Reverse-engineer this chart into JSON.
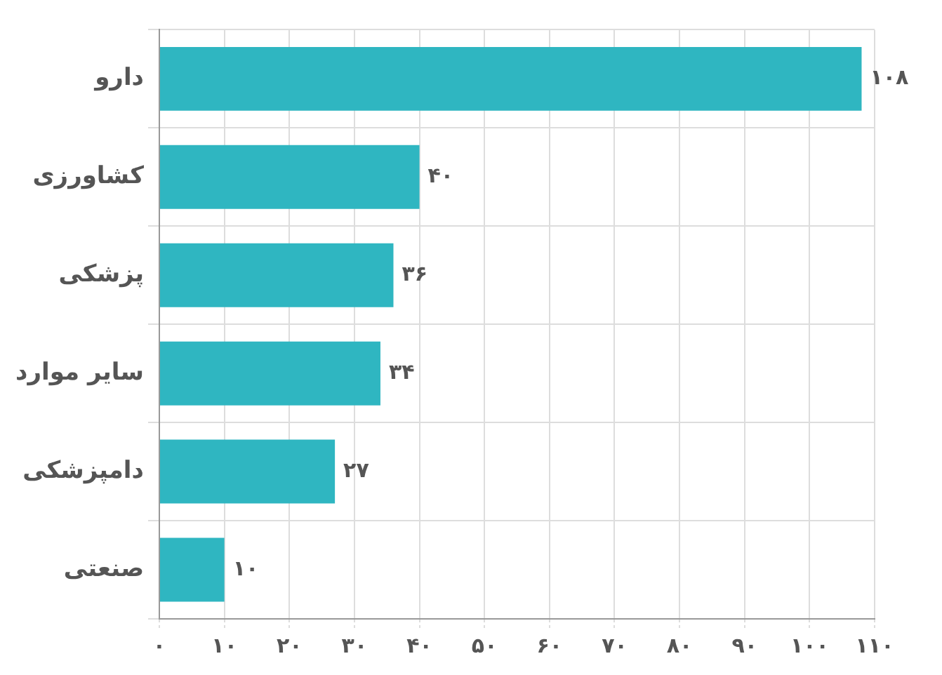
{
  "chart_data": {
    "type": "bar",
    "orientation": "horizontal",
    "categories": [
      "دارو",
      "کشاورزی",
      "پزشکی",
      "سایر موارد",
      "دامپزشکی",
      "صنعتی"
    ],
    "values": [
      108,
      40,
      36,
      34,
      27,
      10
    ],
    "value_labels": [
      "۱۰۸",
      "۴۰",
      "۳۶",
      "۳۴",
      "۲۷",
      "۱۰"
    ],
    "color": "#2fb6c1",
    "xlim": [
      0,
      110
    ],
    "xticks": [
      {
        "value": 0,
        "label": "۰"
      },
      {
        "value": 10,
        "label": "۱۰"
      },
      {
        "value": 20,
        "label": "۲۰"
      },
      {
        "value": 30,
        "label": "۳۰"
      },
      {
        "value": 40,
        "label": "۴۰"
      },
      {
        "value": 50,
        "label": "۵۰"
      },
      {
        "value": 60,
        "label": "۶۰"
      },
      {
        "value": 70,
        "label": "۷۰"
      },
      {
        "value": 80,
        "label": "۸۰"
      },
      {
        "value": 90,
        "label": "۹۰"
      },
      {
        "value": 100,
        "label": "۱۰۰"
      },
      {
        "value": 110,
        "label": "۱۱۰"
      }
    ],
    "grid": true,
    "legend": false
  }
}
